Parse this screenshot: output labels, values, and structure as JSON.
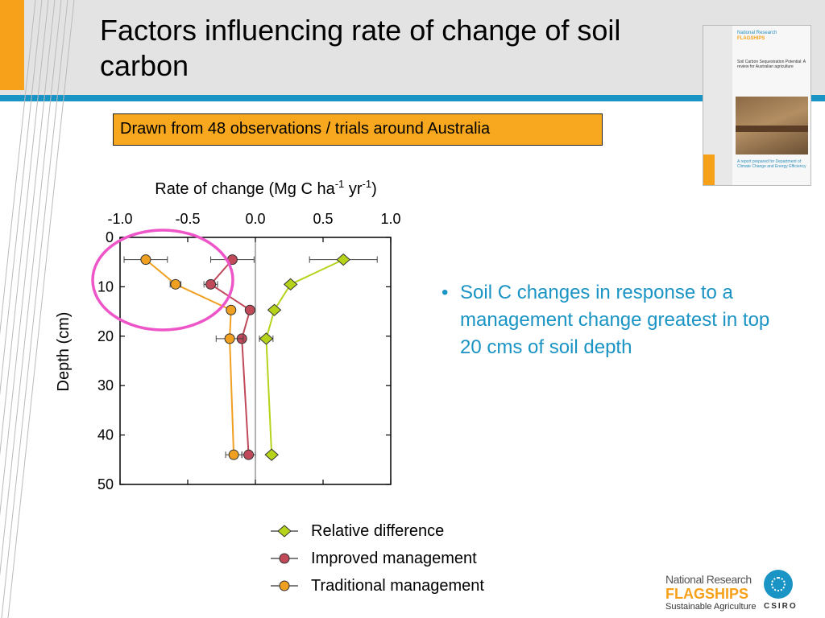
{
  "slide": {
    "title": "Factors influencing rate of change of soil carbon",
    "callout": "Drawn from 48 observations / trials around Australia",
    "bullet": "Soil C changes in response to a management change greatest in top 20 cms of soil depth",
    "bullet_marker": "•"
  },
  "report_cover": {
    "brand_line1": "National Research",
    "brand_line2": "FLAGSHIPS",
    "title": "Soil Carbon Sequestration Potential: A review for Australian agriculture",
    "footer": "A report prepared for Department of Climate Change and Energy Efficiency"
  },
  "footer_logo": {
    "line1": "National Research",
    "line2": "FLAGSHIPS",
    "line3": "Sustainable Agriculture",
    "csiro": "CSIRO"
  },
  "colors": {
    "relative": "#b6d31a",
    "improved": "#c0495a",
    "traditional": "#f0a020",
    "accent_teal": "#1a94c4",
    "accent_orange": "#f7a11a",
    "circle": "#ee55c8"
  },
  "chart_data": {
    "type": "line",
    "title": "Rate of change (Mg C ha-1 yr-1)",
    "xlabel": "Rate of change (Mg C ha-1 yr-1)",
    "ylabel": "Depth (cm)",
    "xlim": [
      -1.0,
      1.0
    ],
    "ylim": [
      0,
      50
    ],
    "y_inverted": true,
    "x_axis_position": "top",
    "xticks": [
      "-1.0",
      "-0.5",
      "0.0",
      "0.5",
      "1.0"
    ],
    "yticks": [
      "0",
      "10",
      "20",
      "30",
      "40",
      "50"
    ],
    "grid": false,
    "legend": "bottom",
    "series": [
      {
        "name": "Relative difference",
        "marker": "diamond",
        "x": [
          0.65,
          0.26,
          0.14,
          0.08,
          0.12
        ],
        "y": [
          4.5,
          9.5,
          14.7,
          20.5,
          44
        ],
        "xerr": [
          0.25,
          0.0,
          0.0,
          0.05,
          0.0
        ]
      },
      {
        "name": "Improved management",
        "marker": "circle",
        "x": [
          -0.17,
          -0.33,
          -0.04,
          -0.1,
          -0.05
        ],
        "y": [
          4.5,
          9.5,
          14.7,
          20.5,
          44
        ],
        "xerr": [
          0.16,
          0.05,
          0.0,
          0.0,
          0.05
        ]
      },
      {
        "name": "Traditional management",
        "marker": "circle",
        "x": [
          -0.81,
          -0.59,
          -0.18,
          -0.19,
          -0.16
        ],
        "y": [
          4.5,
          9.5,
          14.7,
          20.5,
          44
        ],
        "xerr": [
          0.16,
          0.04,
          0.0,
          0.1,
          0.06
        ]
      }
    ],
    "annotation": "circle highlighting top 20 cm"
  }
}
